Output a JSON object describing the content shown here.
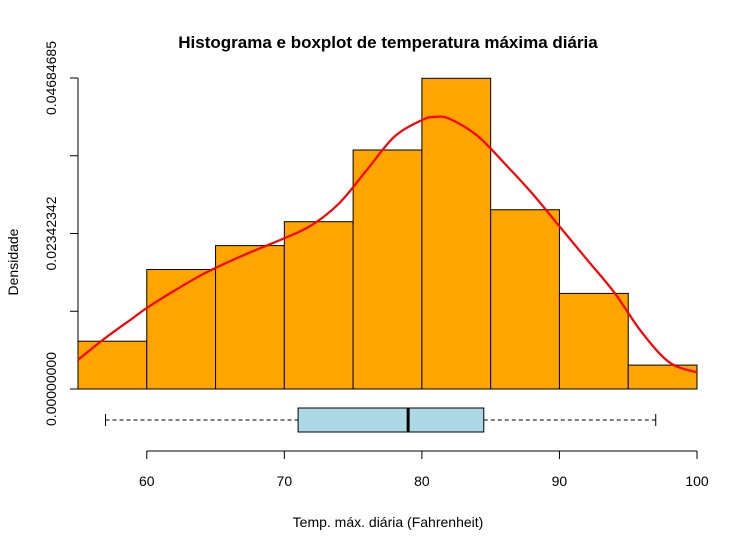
{
  "chart_data": {
    "type": "bar",
    "title": "Histograma e boxplot de temperatura máxima diária",
    "xlabel": "Temp. máx. diária (Fahrenheit)",
    "ylabel": "Densidade",
    "xlim": [
      55,
      100
    ],
    "ylim": [
      0,
      0.04684685
    ],
    "x_ticks": [
      {
        "value": 60,
        "label": "60"
      },
      {
        "value": 70,
        "label": "70"
      },
      {
        "value": 80,
        "label": "80"
      },
      {
        "value": 90,
        "label": "90"
      },
      {
        "value": 100,
        "label": "100"
      }
    ],
    "y_ticks": [
      {
        "value": 0,
        "label": "0.00000000"
      },
      {
        "value": 0.01171171,
        "label": ""
      },
      {
        "value": 0.02342342,
        "label": "0.02342342"
      },
      {
        "value": 0.03513514,
        "label": ""
      },
      {
        "value": 0.04684685,
        "label": "0.04684685"
      }
    ],
    "bins": [
      {
        "from": 55,
        "to": 60,
        "density": 0.0072
      },
      {
        "from": 60,
        "to": 65,
        "density": 0.018
      },
      {
        "from": 65,
        "to": 70,
        "density": 0.0216
      },
      {
        "from": 70,
        "to": 75,
        "density": 0.0252
      },
      {
        "from": 75,
        "to": 80,
        "density": 0.036
      },
      {
        "from": 80,
        "to": 85,
        "density": 0.0468
      },
      {
        "from": 85,
        "to": 90,
        "density": 0.027
      },
      {
        "from": 90,
        "to": 95,
        "density": 0.0144
      },
      {
        "from": 95,
        "to": 100,
        "density": 0.0036
      }
    ],
    "density_curve": {
      "x": [
        55,
        57,
        59,
        60,
        62,
        64,
        66,
        68,
        70,
        72,
        74,
        76,
        78,
        80,
        81,
        82,
        84,
        86,
        88,
        90,
        92,
        94,
        96,
        98,
        100
      ],
      "y": [
        0.0044,
        0.0077,
        0.0107,
        0.0122,
        0.0148,
        0.0172,
        0.0192,
        0.021,
        0.0227,
        0.0247,
        0.028,
        0.033,
        0.038,
        0.0405,
        0.041,
        0.0407,
        0.0382,
        0.034,
        0.0295,
        0.0245,
        0.0195,
        0.0145,
        0.0085,
        0.004,
        0.0025
      ]
    },
    "boxplot": {
      "min": 57,
      "q1": 71,
      "median": 79,
      "q3": 84.5,
      "max": 97
    },
    "colors": {
      "bar_fill": "#FFA500",
      "bar_stroke": "#000000",
      "curve": "#FF0000",
      "box_fill": "#ADD8E6"
    }
  }
}
